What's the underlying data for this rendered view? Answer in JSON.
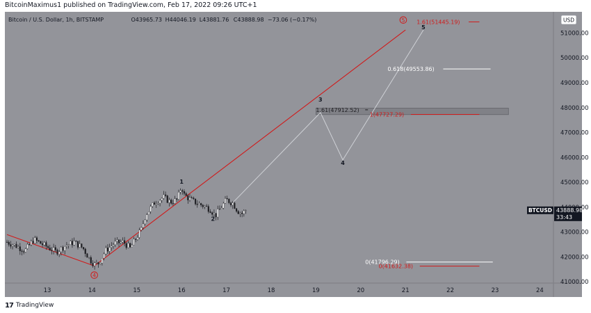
{
  "header": {
    "published_line": "BitcoinMaximus1 published on TradingView.com, Feb 17, 2022 09:26 UTC+1"
  },
  "legend": {
    "symbol": "Bitcoin / U.S. Dollar, 1h, BITSTAMP",
    "open": "O43965.73",
    "high": "H44046.19",
    "low": "L43881.76",
    "close": "C43888.98",
    "change": "−73.06 (−0.17%)"
  },
  "currency_badge": "USD",
  "price_tag": {
    "symbol": "BTCUSD",
    "price": "43888.98",
    "countdown": "33:43"
  },
  "footer": {
    "logo": "17",
    "brand": "TradingView"
  },
  "colors": {
    "background": "#93949a",
    "up_candle": "#ffffff",
    "down_candle": "#1e1e22",
    "red_line": "#d11a1a",
    "projection_line": "#cfd1d6",
    "fib_line": "#ffffff"
  },
  "chart_data": {
    "type": "candlestick",
    "x_axis": {
      "ticks": [
        "13",
        "14",
        "15",
        "16",
        "17",
        "18",
        "19",
        "20",
        "21",
        "22",
        "23",
        "24"
      ],
      "range_days": [
        12.1,
        24.4
      ]
    },
    "y_axis": {
      "ticks": [
        "41000.00",
        "42000.00",
        "43000.00",
        "44000.00",
        "45000.00",
        "46000.00",
        "47000.00",
        "48000.00",
        "49000.00",
        "50000.00",
        "51000.00"
      ],
      "ylim": [
        40950,
        51850
      ],
      "scale": "linear"
    },
    "series_close": [
      [
        12.1,
        42600
      ],
      [
        12.3,
        42450
      ],
      [
        12.5,
        42250
      ],
      [
        12.7,
        42700
      ],
      [
        12.85,
        42550
      ],
      [
        13.0,
        42400
      ],
      [
        13.2,
        42200
      ],
      [
        13.4,
        42450
      ],
      [
        13.6,
        42600
      ],
      [
        13.8,
        42350
      ],
      [
        13.95,
        41900
      ],
      [
        14.05,
        41700
      ],
      [
        14.15,
        41750
      ],
      [
        14.3,
        42250
      ],
      [
        14.5,
        42550
      ],
      [
        14.7,
        42600
      ],
      [
        14.85,
        42350
      ],
      [
        15.0,
        42800
      ],
      [
        15.1,
        43100
      ],
      [
        15.2,
        43700
      ],
      [
        15.4,
        44200
      ],
      [
        15.6,
        44400
      ],
      [
        15.75,
        44200
      ],
      [
        15.9,
        44300
      ],
      [
        16.0,
        44850
      ],
      [
        16.05,
        44500
      ],
      [
        16.2,
        44300
      ],
      [
        16.35,
        44150
      ],
      [
        16.5,
        44050
      ],
      [
        16.65,
        43900
      ],
      [
        16.75,
        43650
      ],
      [
        16.85,
        43900
      ],
      [
        17.0,
        44300
      ],
      [
        17.15,
        44150
      ],
      [
        17.25,
        43850
      ],
      [
        17.35,
        43750
      ],
      [
        17.45,
        43900
      ]
    ],
    "wave_labels": [
      {
        "label": "1",
        "x": 16.0,
        "y": 44950
      },
      {
        "label": "2",
        "x": 16.7,
        "y": 43450
      },
      {
        "label": "3",
        "x": 19.1,
        "y": 48250
      },
      {
        "label": "4",
        "x": 19.6,
        "y": 45700
      },
      {
        "label": "5",
        "x": 21.4,
        "y": 51150
      }
    ],
    "circled_labels": [
      {
        "label": "4",
        "x": 14.05,
        "y": 41270
      },
      {
        "label": "5",
        "x": 20.95,
        "y": 51520
      }
    ],
    "red_line": [
      [
        12.1,
        42900
      ],
      [
        14.05,
        41640
      ],
      [
        21.0,
        51120
      ]
    ],
    "projection": [
      [
        17.1,
        44100
      ],
      [
        19.1,
        47800
      ],
      [
        19.6,
        45900
      ],
      [
        21.4,
        51120
      ]
    ],
    "fib_levels": [
      {
        "label": "1.61(51445.19)",
        "value": 51445.19,
        "color": "red",
        "x_from": 21.25,
        "x_to": 22.65
      },
      {
        "label": "0.618(49553.86)",
        "value": 49553.86,
        "color": "white",
        "x_from": 20.6,
        "x_to": 22.9
      },
      {
        "label": "1.61(47912.52)",
        "value": 47912.52,
        "color": "black",
        "x_from": 19.0,
        "x_to": 20.1
      },
      {
        "label": "1(47727.29)",
        "value": 47727.29,
        "color": "red",
        "x_from": 20.2,
        "x_to": 22.65
      },
      {
        "label": "0(41796.29)",
        "value": 41796.29,
        "color": "white",
        "x_from": 20.1,
        "x_to": 22.95
      },
      {
        "label": "0(41632.38)",
        "value": 41632.38,
        "color": "red",
        "x_from": 20.4,
        "x_to": 22.65
      }
    ],
    "zone": {
      "x_from": 19.0,
      "x_to": 23.3,
      "y_from": 47720,
      "y_to": 47980
    }
  }
}
